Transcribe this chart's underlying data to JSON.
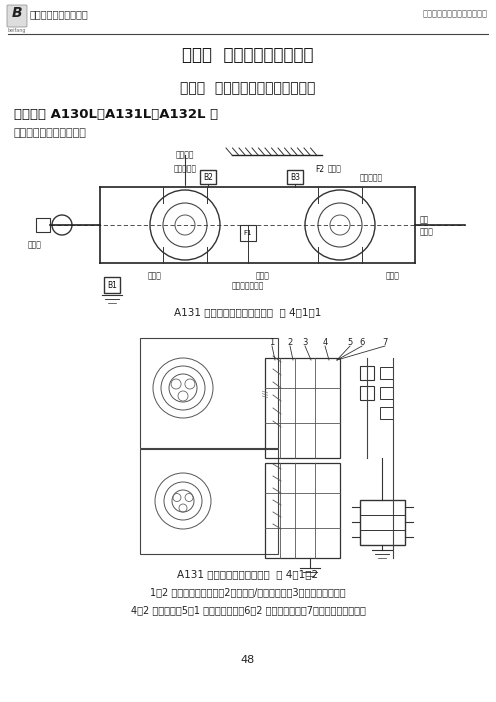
{
  "bg_color": "#ffffff",
  "header_logo_text": "中国北方汽车教育集团",
  "header_right_text": "自动变速器之第四章传动原理",
  "chapter_title": "第四章  自动变速器传动原理",
  "section_title": "第一节  辛普森自动变速器传动原理",
  "subsection_title": "一、丰田 A130L、A131L、A132L 型",
  "applicable_text": "适用车型：花冠、克罗纳",
  "fig1_caption": "A131 型自动变速器传动原理图  图 4－1－1",
  "fig2_caption": "A131 型自动变速器传动原线  图 4－1－2",
  "legend_line1": "1－2 档滑行带式制动器，2－高速档/倒档离合器，3－前进档离合器，",
  "legend_line2": "4－2 档制动器，5－1 号单向离合器，6－2 号单向离合器，7－低速档单向离合器",
  "page_number": "48"
}
